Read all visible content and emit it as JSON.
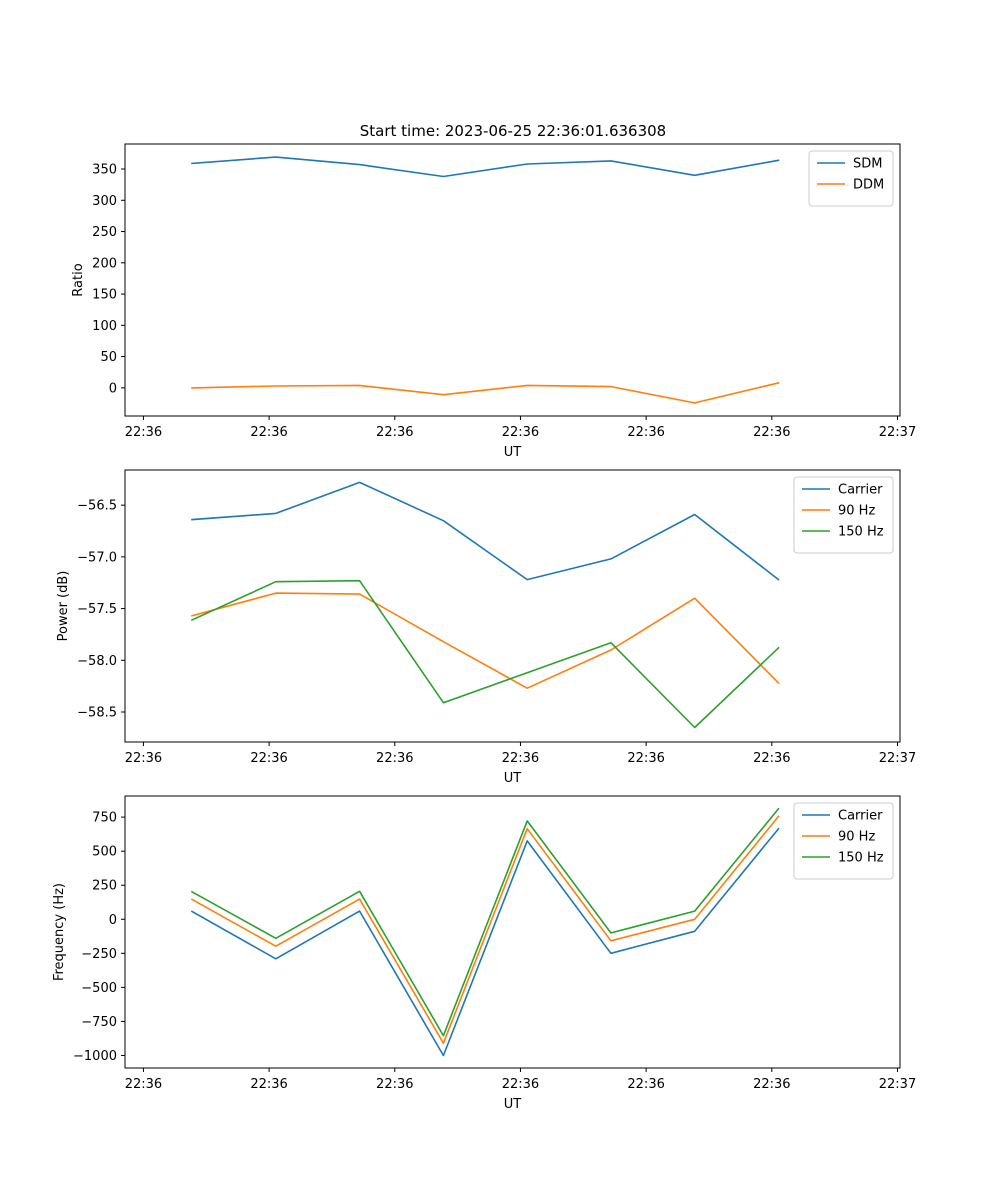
{
  "figure_title": "Start time: 2023-06-25 22:36:01.636308",
  "colors": {
    "blue": "#1f77b4",
    "orange": "#ff7f0e",
    "green": "#2ca02c"
  },
  "chart_data": [
    {
      "type": "line",
      "xlabel": "UT",
      "ylabel": "Ratio",
      "x": [
        1,
        2,
        3,
        4,
        5,
        6,
        7,
        8
      ],
      "xlim": [
        0.2,
        9.45
      ],
      "x_ticks": [
        0.42,
        1.92,
        3.42,
        4.92,
        6.42,
        7.92,
        9.42
      ],
      "x_tick_labels": [
        "22:36",
        "22:36",
        "22:36",
        "22:36",
        "22:36",
        "22:36",
        "22:37"
      ],
      "ylim": [
        -45,
        390
      ],
      "y_ticks": [
        0,
        50,
        100,
        150,
        200,
        250,
        300,
        350
      ],
      "y_tick_labels": [
        "0",
        "50",
        "100",
        "150",
        "200",
        "250",
        "300",
        "350"
      ],
      "legend": "upper right",
      "series": [
        {
          "name": "SDM",
          "color": "#1f77b4",
          "values": [
            359,
            369,
            357,
            338,
            358,
            363,
            340,
            364
          ]
        },
        {
          "name": "DDM",
          "color": "#ff7f0e",
          "values": [
            0,
            3,
            4,
            -11,
            4,
            2,
            -24,
            8
          ]
        }
      ]
    },
    {
      "type": "line",
      "xlabel": "UT",
      "ylabel": "Power (dB)",
      "x": [
        1,
        2,
        3,
        4,
        5,
        6,
        7,
        8
      ],
      "xlim": [
        0.2,
        9.45
      ],
      "x_ticks": [
        0.42,
        1.92,
        3.42,
        4.92,
        6.42,
        7.92,
        9.42
      ],
      "x_tick_labels": [
        "22:36",
        "22:36",
        "22:36",
        "22:36",
        "22:36",
        "22:36",
        "22:37"
      ],
      "ylim": [
        -58.79,
        -56.16
      ],
      "y_ticks": [
        -58.5,
        -58.0,
        -57.5,
        -57.0,
        -56.5
      ],
      "y_tick_labels": [
        "−58.5",
        "−58.0",
        "−57.5",
        "−57.0",
        "−56.5"
      ],
      "legend": "upper right",
      "series": [
        {
          "name": "Carrier",
          "color": "#1f77b4",
          "values": [
            -56.64,
            -56.58,
            -56.28,
            -56.65,
            -57.22,
            -57.02,
            -56.59,
            -57.22
          ]
        },
        {
          "name": "90 Hz",
          "color": "#ff7f0e",
          "values": [
            -57.57,
            -57.35,
            -57.36,
            -57.82,
            -58.27,
            -57.9,
            -57.4,
            -58.22
          ]
        },
        {
          "name": "150 Hz",
          "color": "#2ca02c",
          "values": [
            -57.61,
            -57.24,
            -57.23,
            -58.41,
            -58.12,
            -57.83,
            -58.65,
            -57.88
          ]
        }
      ]
    },
    {
      "type": "line",
      "xlabel": "UT",
      "ylabel": "Frequency (Hz)",
      "x": [
        1,
        2,
        3,
        4,
        5,
        6,
        7,
        8
      ],
      "xlim": [
        0.2,
        9.45
      ],
      "x_ticks": [
        0.42,
        1.92,
        3.42,
        4.92,
        6.42,
        7.92,
        9.42
      ],
      "x_tick_labels": [
        "22:36",
        "22:36",
        "22:36",
        "22:36",
        "22:36",
        "22:36",
        "22:37"
      ],
      "ylim": [
        -1092,
        905
      ],
      "y_ticks": [
        -1000,
        -750,
        -500,
        -250,
        0,
        250,
        500,
        750
      ],
      "y_tick_labels": [
        "−1000",
        "−750",
        "−500",
        "−250",
        "0",
        "250",
        "500",
        "750"
      ],
      "legend": "upper right",
      "series": [
        {
          "name": "Carrier",
          "color": "#1f77b4",
          "values": [
            57,
            -290,
            60,
            -1000,
            575,
            -250,
            -88,
            665
          ]
        },
        {
          "name": "90 Hz",
          "color": "#ff7f0e",
          "values": [
            145,
            -198,
            148,
            -910,
            665,
            -158,
            0,
            755
          ]
        },
        {
          "name": "150 Hz",
          "color": "#2ca02c",
          "values": [
            202,
            -140,
            205,
            -855,
            722,
            -100,
            60,
            812
          ]
        }
      ]
    }
  ]
}
